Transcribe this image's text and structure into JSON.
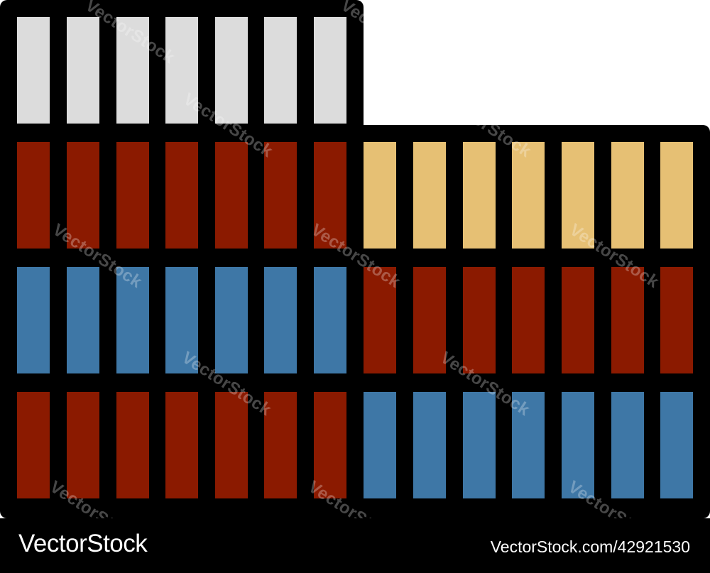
{
  "illustration": {
    "subject": "building-icon",
    "colors": {
      "outline": "#000000",
      "window_light_gray": "#dcdcdc",
      "window_dark_red": "#8b1a00",
      "window_blue": "#3e77a6",
      "window_tan": "#e6c074"
    }
  },
  "watermark": {
    "text": "VectorStock"
  },
  "footer": {
    "brand": "VectorStock",
    "stock_id": "VectorStock.com/42921530"
  }
}
